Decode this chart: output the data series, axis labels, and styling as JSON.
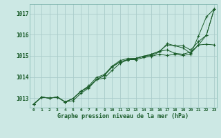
{
  "title": "Graphe pression niveau de la mer (hPa)",
  "background_color": "#cce8e4",
  "grid_color": "#aaccca",
  "line_color": "#1a5c2a",
  "x_min": -0.5,
  "x_max": 23.3,
  "y_min": 1012.55,
  "y_max": 1017.45,
  "yticks": [
    1013,
    1014,
    1015,
    1016,
    1017
  ],
  "xticks": [
    0,
    1,
    2,
    3,
    4,
    5,
    6,
    7,
    8,
    9,
    10,
    11,
    12,
    13,
    14,
    15,
    16,
    17,
    18,
    19,
    20,
    21,
    22,
    23
  ],
  "series": [
    [
      1012.72,
      1013.05,
      1013.0,
      1013.05,
      1012.82,
      1012.88,
      1013.22,
      1013.48,
      1013.88,
      1013.95,
      1014.32,
      1014.65,
      1014.82,
      1014.82,
      1014.92,
      1014.98,
      1015.08,
      1015.02,
      1015.08,
      1015.02,
      1015.08,
      1015.95,
      1016.85,
      1017.22
    ],
    [
      1012.72,
      1013.05,
      1013.0,
      1013.05,
      1012.82,
      1012.98,
      1013.32,
      1013.52,
      1013.88,
      1014.08,
      1014.48,
      1014.72,
      1014.82,
      1014.88,
      1014.98,
      1015.08,
      1015.22,
      1015.28,
      1015.12,
      1015.08,
      1015.18,
      1015.52,
      1015.55,
      1015.52
    ],
    [
      1012.72,
      1013.05,
      1013.0,
      1013.05,
      1012.82,
      1012.98,
      1013.32,
      1013.52,
      1013.88,
      1014.08,
      1014.48,
      1014.72,
      1014.82,
      1014.88,
      1014.98,
      1015.02,
      1015.18,
      1015.58,
      1015.48,
      1015.38,
      1015.12,
      1015.52,
      1015.98,
      1017.22
    ],
    [
      1012.72,
      1013.05,
      1013.0,
      1013.05,
      1012.82,
      1012.98,
      1013.32,
      1013.58,
      1013.98,
      1014.12,
      1014.52,
      1014.78,
      1014.88,
      1014.88,
      1014.98,
      1015.08,
      1015.22,
      1015.52,
      1015.48,
      1015.48,
      1015.28,
      1015.68,
      1015.98,
      1017.22
    ]
  ]
}
